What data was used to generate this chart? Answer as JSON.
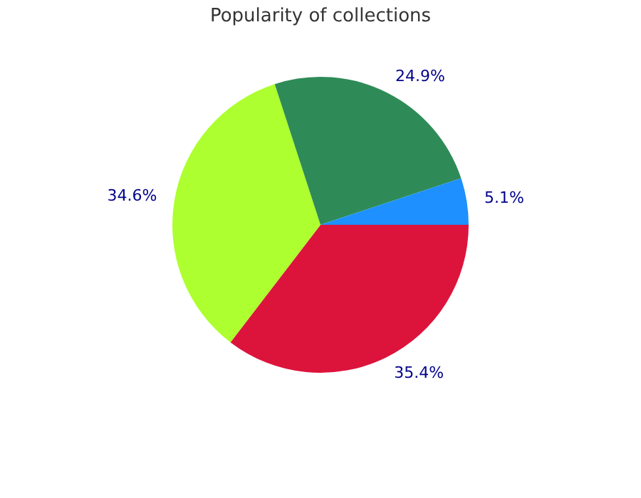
{
  "chart_data": {
    "type": "pie",
    "title": "Popularity of collections",
    "categories": [
      null,
      null,
      null,
      null
    ],
    "values": [
      35.4,
      34.6,
      24.9,
      5.1
    ],
    "value_labels": [
      "35.4%",
      "34.6%",
      "24.9%",
      "5.1%"
    ],
    "colors": [
      "#dc143c",
      "#adff2f",
      "#2e8b57",
      "#1e90ff"
    ],
    "legend": false
  }
}
